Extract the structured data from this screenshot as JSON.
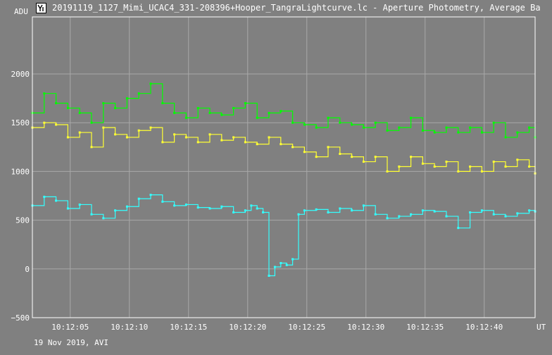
{
  "window": {
    "title": "20191119_1127_Mimi_UCAC4_331-208396+Hooper_TangraLightcurve.lc - Aperture Photometry, Average Ba",
    "icon": "tangra-app-icon"
  },
  "footer_label": "19 Nov 2019, AVI",
  "colors": {
    "background": "#808080",
    "grid": "#a8a8a8",
    "axis": "#ffffff",
    "series_target": "#33ffff",
    "series_comp1": "#00ff00",
    "series_comp2": "#ffff33"
  },
  "chart_data": {
    "type": "line",
    "ylabel": "ADU",
    "xlabel": "UT",
    "ylim": [
      -500,
      2200
    ],
    "xlim": [
      1.8,
      44.3
    ],
    "xlim_note": "seconds after 10:12:00 UT",
    "y_ticks": [
      -500,
      0,
      500,
      1000,
      1500,
      2000
    ],
    "x_ticks": [
      "10:12:05",
      "10:12:10",
      "10:12:15",
      "10:12:20",
      "10:12:25",
      "10:12:30",
      "10:12:35",
      "10:12:40"
    ],
    "x_tick_seconds": [
      5,
      10,
      15,
      20,
      25,
      30,
      35,
      40
    ],
    "grid": true,
    "step_style": true,
    "series": [
      {
        "key": "target",
        "color": "#33ffff",
        "x": [
          1.8,
          2.8,
          3.8,
          4.8,
          5.8,
          6.8,
          7.8,
          8.8,
          9.8,
          10.8,
          11.8,
          12.8,
          13.8,
          14.8,
          15.8,
          16.8,
          17.8,
          18.8,
          19.8,
          20.3,
          20.8,
          21.3,
          21.8,
          22.3,
          22.8,
          23.3,
          23.8,
          24.3,
          24.8,
          25.8,
          26.8,
          27.8,
          28.8,
          29.8,
          30.8,
          31.8,
          32.8,
          33.8,
          34.8,
          35.8,
          36.8,
          37.8,
          38.8,
          39.8,
          40.8,
          41.8,
          42.8,
          43.8,
          44.3
        ],
        "values": [
          650,
          740,
          700,
          620,
          660,
          560,
          520,
          600,
          640,
          720,
          760,
          690,
          650,
          660,
          630,
          620,
          640,
          580,
          600,
          650,
          620,
          580,
          -70,
          20,
          60,
          40,
          100,
          560,
          600,
          610,
          580,
          620,
          600,
          650,
          560,
          520,
          540,
          560,
          600,
          590,
          540,
          420,
          580,
          600,
          560,
          540,
          570,
          600,
          590
        ]
      },
      {
        "key": "comp1",
        "color": "#00ff00",
        "x": [
          1.8,
          2.8,
          3.8,
          4.8,
          5.8,
          6.8,
          7.8,
          8.8,
          9.8,
          10.8,
          11.8,
          12.8,
          13.8,
          14.8,
          15.8,
          16.8,
          17.8,
          18.8,
          19.8,
          20.8,
          21.8,
          22.8,
          23.8,
          24.8,
          25.8,
          26.8,
          27.8,
          28.8,
          29.8,
          30.8,
          31.8,
          32.8,
          33.8,
          34.8,
          35.8,
          36.8,
          37.8,
          38.8,
          39.8,
          40.8,
          41.8,
          42.8,
          43.8,
          44.3
        ],
        "values": [
          1600,
          1800,
          1700,
          1650,
          1600,
          1500,
          1700,
          1650,
          1750,
          1800,
          1900,
          1700,
          1600,
          1550,
          1650,
          1600,
          1580,
          1650,
          1700,
          1550,
          1600,
          1620,
          1500,
          1480,
          1450,
          1550,
          1500,
          1480,
          1450,
          1500,
          1420,
          1450,
          1550,
          1420,
          1400,
          1450,
          1400,
          1450,
          1400,
          1500,
          1350,
          1400,
          1450,
          1350
        ]
      },
      {
        "key": "comp2",
        "color": "#ffff33",
        "x": [
          1.8,
          2.8,
          3.8,
          4.8,
          5.8,
          6.8,
          7.8,
          8.8,
          9.8,
          10.8,
          11.8,
          12.8,
          13.8,
          14.8,
          15.8,
          16.8,
          17.8,
          18.8,
          19.8,
          20.8,
          21.8,
          22.8,
          23.8,
          24.8,
          25.8,
          26.8,
          27.8,
          28.8,
          29.8,
          30.8,
          31.8,
          32.8,
          33.8,
          34.8,
          35.8,
          36.8,
          37.8,
          38.8,
          39.8,
          40.8,
          41.8,
          42.8,
          43.8,
          44.3
        ],
        "values": [
          1450,
          1500,
          1480,
          1350,
          1400,
          1250,
          1450,
          1380,
          1350,
          1420,
          1450,
          1300,
          1380,
          1350,
          1300,
          1380,
          1320,
          1350,
          1300,
          1280,
          1350,
          1280,
          1250,
          1200,
          1150,
          1250,
          1180,
          1150,
          1100,
          1150,
          1000,
          1050,
          1150,
          1080,
          1050,
          1100,
          1000,
          1050,
          1000,
          1100,
          1050,
          1120,
          1050,
          980
        ]
      }
    ]
  }
}
